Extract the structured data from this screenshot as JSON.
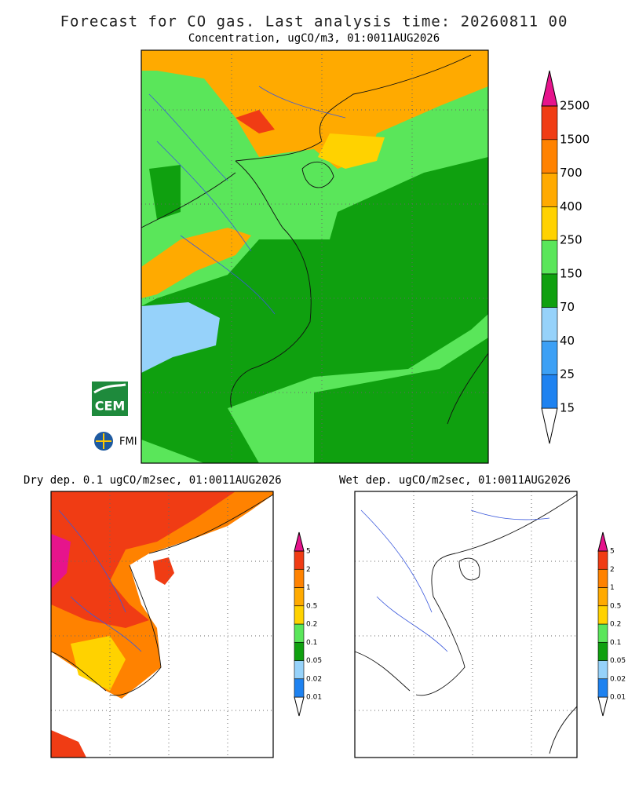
{
  "header": {
    "title": "Forecast for CO gas. Last analysis time: 20260811  00"
  },
  "panels": [
    {
      "title": "Concentration, ugCO/m3, 01:0011AUG2026",
      "colorbar": {
        "levels": [
          15,
          25,
          40,
          70,
          150,
          250,
          400,
          700,
          1500,
          2500
        ],
        "colors": [
          "#ffffff",
          "#1e82f0",
          "#3ca0f5",
          "#96d2fa",
          "#0fa00f",
          "#5ae65a",
          "#ffd200",
          "#ffaa00",
          "#ff8200",
          "#f03c14",
          "#e6148c"
        ]
      }
    },
    {
      "title": "Dry dep. 0.1 ugCO/m2sec, 01:0011AUG2026",
      "colorbar": {
        "levels": [
          0.01,
          0.02,
          0.05,
          0.1,
          0.2,
          0.5,
          1,
          2,
          5
        ],
        "colors": [
          "#ffffff",
          "#1e82f0",
          "#96d2fa",
          "#0fa00f",
          "#5ae65a",
          "#ffd200",
          "#ffaa00",
          "#ff8200",
          "#f03c14",
          "#e6148c"
        ]
      }
    },
    {
      "title": "Wet dep. ugCO/m2sec, 01:0011AUG2026",
      "colorbar": {
        "levels": [
          0.01,
          0.02,
          0.05,
          0.1,
          0.2,
          0.5,
          1,
          2,
          5
        ],
        "colors": [
          "#ffffff",
          "#1e82f0",
          "#96d2fa",
          "#0fa00f",
          "#5ae65a",
          "#ffd200",
          "#ffaa00",
          "#ff8200",
          "#f03c14",
          "#e6148c"
        ]
      }
    }
  ],
  "logos": {
    "cem": "CEM",
    "fmi": "FMI"
  }
}
